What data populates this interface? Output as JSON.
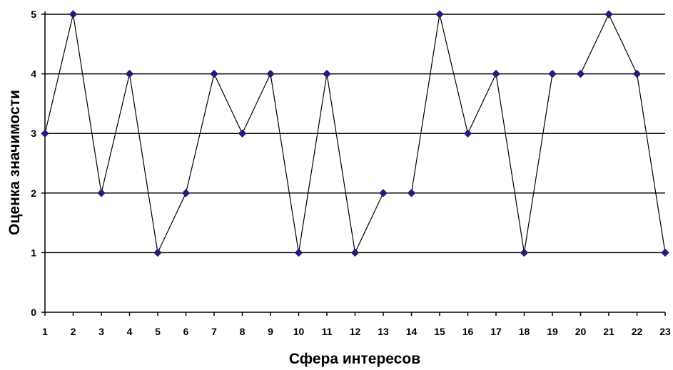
{
  "chart_data": {
    "type": "line",
    "xlabel": "Сфера интересов",
    "ylabel": "Оценка значимости",
    "x": [
      1,
      2,
      3,
      4,
      5,
      6,
      7,
      8,
      9,
      10,
      11,
      12,
      13,
      14,
      15,
      16,
      17,
      18,
      19,
      20,
      21,
      22,
      23
    ],
    "series": [
      {
        "values": [
          3,
          5,
          2,
          4,
          1,
          2,
          4,
          3,
          4,
          1,
          4,
          1,
          2,
          2,
          5,
          3,
          4,
          1,
          4,
          4,
          5,
          4,
          1
        ]
      }
    ],
    "ylim": [
      0,
      5
    ],
    "yticks": [
      0,
      1,
      2,
      3,
      4,
      5
    ],
    "grid": "horizontal",
    "legend": "none",
    "line_color": "#000000",
    "marker_color": "#1f1f7a",
    "marker": "diamond"
  }
}
